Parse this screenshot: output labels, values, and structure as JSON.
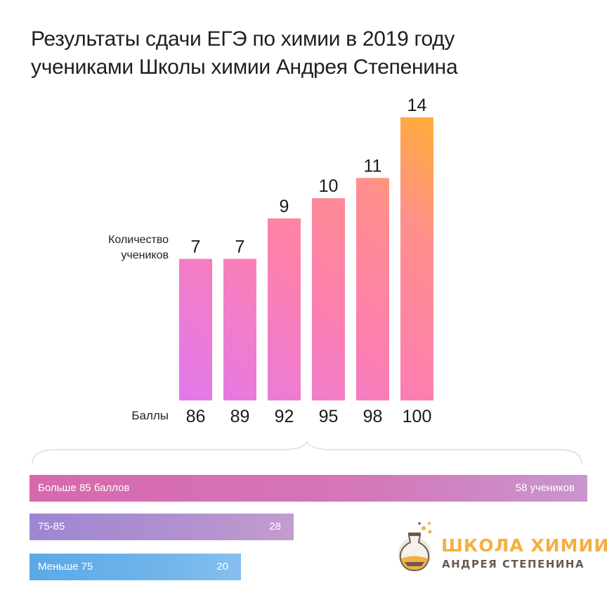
{
  "title": {
    "line1": "Результаты сдачи ЕГЭ по химии в 2019 году",
    "line2": "учениками Школы химии Андрея Степенина"
  },
  "chart_data": [
    {
      "type": "bar",
      "title": "Результаты сдачи ЕГЭ по химии в 2019 году учениками Школы химии Андрея Степенина",
      "ylabel": "Количество\nучеников",
      "xlabel": "Баллы",
      "categories": [
        "86",
        "89",
        "92",
        "95",
        "98",
        "100"
      ],
      "values": [
        7,
        7,
        9,
        10,
        11,
        14
      ],
      "ylim": [
        0,
        14
      ],
      "grid": false,
      "colors": [
        "#e079ee",
        "#e87fd8",
        "#fd7fae",
        "#ff839d",
        "#ff9487",
        "#ffad3c"
      ]
    },
    {
      "type": "bar",
      "orientation": "horizontal",
      "categories": [
        "Больше 85 баллов",
        "75-85",
        "Меньше 75"
      ],
      "values": [
        58,
        28,
        20
      ],
      "value_labels": [
        "58 учеников",
        "28",
        "20"
      ],
      "colors": [
        "#d86fb2",
        "#a98ad1",
        "#64aeea"
      ]
    }
  ],
  "logo": {
    "line1": "ШКОЛА ХИМИИ",
    "line2": "АНДРЕЯ СТЕПЕНИНА",
    "colors": {
      "accent": "#f3b042",
      "dark": "#6b5a50"
    },
    "icon": "flask-icon"
  }
}
